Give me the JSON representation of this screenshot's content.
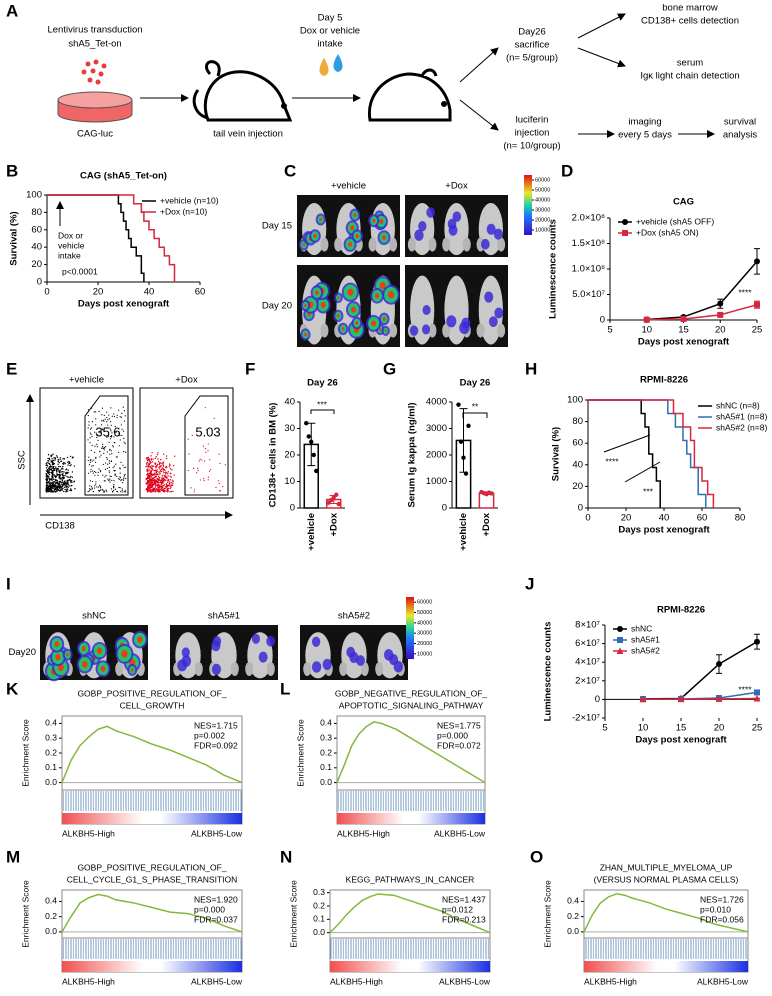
{
  "diagram": {
    "label": "A",
    "texts": [
      "Lentivirus transduction",
      "shA5_Tet-on",
      "CAG-luc",
      "tail vein injection",
      "Day 5",
      "Dox or vehicle",
      "intake",
      "Day26",
      "sacrifice",
      "(n= 5/group)",
      "bone marrow",
      "CD138+ cells detection",
      "serum",
      "Igκ light chain detection",
      "luciferin",
      "injection",
      "(n= 10/group)",
      "imaging",
      "every 5 days",
      "survival",
      "analysis"
    ]
  },
  "imaging": [
    {
      "label": "C",
      "columns": [
        "+vehicle",
        "+Dox"
      ],
      "rows": [
        "Day 15",
        "Day 20"
      ],
      "colorbar_lim": [
        5000,
        65000
      ],
      "colorbar_ticks": [
        60000,
        50000,
        40000,
        30000,
        20000,
        10000
      ]
    },
    {
      "label": "I",
      "columns": [
        "shNC",
        "shA5#1",
        "shA5#2"
      ],
      "rows": [
        "Day20"
      ],
      "colorbar_lim": [
        5000,
        65000
      ],
      "colorbar_ticks": [
        60000,
        50000,
        40000,
        30000,
        20000,
        10000
      ]
    }
  ],
  "flow": {
    "label": "E",
    "x_label": "CD138",
    "y_label": "SSC",
    "plots": [
      {
        "title": "+vehicle",
        "gate": 35.6,
        "color": "#000000"
      },
      {
        "title": "+Dox",
        "gate": 5.03,
        "color": "#e0001b"
      }
    ]
  },
  "chart_data": [
    {
      "label": "B",
      "type": "survival",
      "title": "CAG (shA5_Tet-on)",
      "y_label": "Survival (%)",
      "x_label": "Days post xenograft",
      "xlim": [
        0,
        60
      ],
      "xticks": [
        0,
        20,
        40,
        60
      ],
      "ylim": [
        0,
        100
      ],
      "yticks": [
        0,
        20,
        40,
        60,
        80,
        100
      ],
      "legend": "upper right",
      "series": [
        {
          "name": "+vehicle (n=10)",
          "color": "#000000",
          "x": [
            0,
            28,
            29,
            30,
            31,
            32,
            33,
            35,
            37,
            38
          ],
          "values": [
            100,
            90,
            80,
            70,
            60,
            50,
            40,
            30,
            10,
            0
          ]
        },
        {
          "name": "+Dox (n=10)",
          "color": "#d7263d",
          "x": [
            0,
            34,
            37,
            38,
            40,
            42,
            44,
            46,
            48,
            50
          ],
          "values": [
            100,
            90,
            80,
            70,
            60,
            50,
            40,
            30,
            20,
            0
          ]
        }
      ],
      "annotations": [
        "Dox or",
        "vehicle",
        "intake",
        "p<0.0001"
      ]
    },
    {
      "label": "D",
      "type": "line",
      "title": "CAG",
      "y_label": "Luminescence counts",
      "x_label": "Days post xenograft",
      "xlim": [
        5,
        25
      ],
      "xticks": [
        5,
        10,
        15,
        20,
        25
      ],
      "ylim": [
        0,
        200000000
      ],
      "yticks": [
        0,
        {
          "value": 50000000,
          "label": "5.0×10⁷"
        },
        {
          "value": 100000000,
          "label": "1.0×10⁸"
        },
        {
          "value": 150000000,
          "label": "1.5×10⁸"
        },
        {
          "value": 200000000,
          "label": "2.0×10⁸"
        }
      ],
      "legend": "upper left",
      "x": [
        10,
        15,
        20,
        25
      ],
      "series": [
        {
          "name": "+vehicle (shA5 OFF)",
          "color": "#000000",
          "marker": "circle",
          "values": [
            1000000,
            6000000,
            32000000,
            115000000
          ],
          "errors": [
            500000,
            2000000,
            9000000,
            25000000
          ]
        },
        {
          "name": "+Dox (shA5 ON)",
          "color": "#d7263d",
          "marker": "square",
          "values": [
            500000,
            2000000,
            10000000,
            30000000
          ],
          "errors": [
            300000,
            1000000,
            3000000,
            7000000
          ]
        }
      ],
      "annotations": [
        "****"
      ]
    },
    {
      "label": "F",
      "type": "bar",
      "title": "Day 26",
      "y_label": "CD138+ cells in BM (%)",
      "ylim": [
        0,
        40
      ],
      "yticks": [
        0,
        10,
        20,
        30,
        40
      ],
      "categories": [
        "+vehicle",
        "+Dox"
      ],
      "colors": [
        "#000000",
        "#d7263d"
      ],
      "values": [
        24,
        3.2
      ],
      "errors": [
        8,
        1.5
      ],
      "points": [
        [
          32,
          27,
          25,
          20,
          14
        ],
        [
          2,
          3,
          4,
          5,
          1.5
        ]
      ],
      "annotations": [
        "***"
      ]
    },
    {
      "label": "G",
      "type": "bar",
      "title": "Day 26",
      "y_label": "Serum Ig kappa (ng/ml)",
      "ylim": [
        0,
        4000
      ],
      "yticks": [
        0,
        1000,
        2000,
        3000,
        4000
      ],
      "categories": [
        "+vehicle",
        "+Dox"
      ],
      "colors": [
        "#000000",
        "#d7263d"
      ],
      "values": [
        2550,
        560
      ],
      "errors": [
        1200,
        50
      ],
      "points": [
        [
          3900,
          2500,
          1900,
          1300,
          3100
        ],
        [
          600,
          560,
          520,
          580,
          550
        ]
      ],
      "annotations": [
        "**"
      ]
    },
    {
      "label": "H",
      "type": "survival",
      "title": "RPMI-8226",
      "y_label": "Survival (%)",
      "x_label": "Days post xenograft",
      "xlim": [
        0,
        80
      ],
      "xticks": [
        0,
        20,
        40,
        60,
        80
      ],
      "ylim": [
        0,
        100
      ],
      "yticks": [
        0,
        20,
        40,
        60,
        80,
        100
      ],
      "legend": "upper right",
      "series": [
        {
          "name": "shNC (n=8)",
          "color": "#000000",
          "x": [
            0,
            28,
            30,
            32,
            34,
            36,
            38
          ],
          "values": [
            100,
            87.5,
            75,
            50,
            37.5,
            25,
            0
          ]
        },
        {
          "name": "shA5#1 (n=8)",
          "color": "#2f6eb5",
          "x": [
            0,
            42,
            46,
            50,
            52,
            54,
            58,
            62
          ],
          "values": [
            100,
            87.5,
            75,
            62.5,
            50,
            37.5,
            12.5,
            0
          ]
        },
        {
          "name": "shA5#2 (n=8)",
          "color": "#d7263d",
          "x": [
            0,
            45,
            50,
            54,
            56,
            60,
            63,
            66
          ],
          "values": [
            100,
            87.5,
            75,
            62.5,
            37.5,
            25,
            12.5,
            0
          ]
        }
      ],
      "annotations": [
        "****",
        "***"
      ]
    },
    {
      "label": "J",
      "type": "line",
      "title": "RPMI-8226",
      "y_label": "Luminescence counts",
      "x_label": "Days post xenograft",
      "xlim": [
        5,
        25
      ],
      "xticks": [
        5,
        10,
        15,
        20,
        25
      ],
      "ylim": [
        -20000000,
        80000000
      ],
      "yticks": [
        {
          "value": -20000000,
          "label": "-2×10⁷"
        },
        0,
        {
          "value": 20000000,
          "label": "2×10⁷"
        },
        {
          "value": 40000000,
          "label": "4×10⁷"
        },
        {
          "value": 60000000,
          "label": "6×10⁷"
        },
        {
          "value": 80000000,
          "label": "8×10⁷"
        }
      ],
      "legend": "upper left",
      "x": [
        10,
        15,
        20,
        25
      ],
      "series": [
        {
          "name": "shNC",
          "color": "#000000",
          "marker": "circle",
          "values": [
            500000,
            1000000,
            38000000,
            62000000
          ],
          "errors": [
            300000,
            500000,
            10000000,
            8000000
          ]
        },
        {
          "name": "shA5#1",
          "color": "#2f6eb5",
          "marker": "square",
          "values": [
            300000,
            400000,
            1500000,
            7500000
          ],
          "errors": [
            100000,
            100000,
            500000,
            1500000
          ]
        },
        {
          "name": "shA5#2",
          "color": "#d7263d",
          "marker": "triangle",
          "values": [
            200000,
            300000,
            600000,
            1000000
          ],
          "errors": [
            100000,
            100000,
            200000,
            300000
          ]
        }
      ],
      "annotations": [
        "****"
      ]
    },
    {
      "label": "K",
      "type": "gsea",
      "title": [
        "GOBP_POSITIVE_REGULATION_OF_",
        "CELL_GROWTH"
      ],
      "stats": [
        "NES=1.715",
        "p=0.002",
        "FDR=0.092"
      ],
      "y_label": "Enrichment Score",
      "high_label": "ALKBH5-High",
      "low_label": "ALKBH5-Low",
      "color": "#86b83c",
      "xlim": [
        0,
        100
      ],
      "ylim": [
        -0.05,
        0.45
      ],
      "yticks": [
        {
          "value": 0,
          "label": "0.0"
        },
        0.1,
        0.2,
        0.3,
        0.4
      ],
      "x": [
        0,
        5,
        10,
        15,
        20,
        25,
        30,
        40,
        50,
        60,
        70,
        80,
        90,
        100
      ],
      "values": [
        0,
        0.15,
        0.25,
        0.31,
        0.36,
        0.38,
        0.35,
        0.31,
        0.26,
        0.22,
        0.17,
        0.12,
        0.05,
        0
      ]
    },
    {
      "label": "L",
      "type": "gsea",
      "title": [
        "GOBP_NEGATIVE_REGULATION_OF_",
        "APOPTOTIC_SIGNALING_PATHWAY"
      ],
      "stats": [
        "NES=1.775",
        "p=0.000",
        "FDR=0.072"
      ],
      "y_label": "Enrichment Score",
      "high_label": "ALKBH5-High",
      "low_label": "ALKBH5-Low",
      "color": "#86b83c",
      "xlim": [
        0,
        100
      ],
      "ylim": [
        -0.05,
        0.45
      ],
      "yticks": [
        {
          "value": 0,
          "label": "0.0"
        },
        0.1,
        0.2,
        0.3,
        0.4
      ],
      "x": [
        0,
        5,
        10,
        15,
        20,
        25,
        30,
        40,
        50,
        60,
        70,
        80,
        90,
        100
      ],
      "values": [
        0,
        0.12,
        0.25,
        0.33,
        0.38,
        0.41,
        0.4,
        0.36,
        0.3,
        0.24,
        0.18,
        0.12,
        0.06,
        0
      ]
    },
    {
      "label": "M",
      "type": "gsea",
      "title": [
        "GOBP_POSITIVE_REGULATION_OF_",
        "CELL_CYCLE_G1_S_PHASE_TRANSITION"
      ],
      "stats": [
        "NES=1.920",
        "p=0.000",
        "FDR=0.037"
      ],
      "y_label": "Enrichment Score",
      "high_label": "ALKBH5-High",
      "low_label": "ALKBH5-Low",
      "color": "#86b83c",
      "xlim": [
        0,
        100
      ],
      "ylim": [
        -0.08,
        0.55
      ],
      "yticks": [
        {
          "value": 0,
          "label": "0.0"
        },
        0.2,
        0.4
      ],
      "x": [
        0,
        5,
        10,
        15,
        20,
        25,
        30,
        40,
        50,
        60,
        70,
        80,
        90,
        100
      ],
      "values": [
        0,
        0.2,
        0.38,
        0.45,
        0.49,
        0.47,
        0.42,
        0.38,
        0.32,
        0.26,
        0.24,
        0.18,
        0.08,
        0
      ]
    },
    {
      "label": "N",
      "type": "gsea",
      "title": [
        "KEGG_PATHWAYS_IN_CANCER"
      ],
      "stats": [
        "NES=1.437",
        "p=0.012",
        "FDR=0.213"
      ],
      "y_label": "Enrichment Score",
      "high_label": "ALKBH5-High",
      "low_label": "ALKBH5-Low",
      "color": "#86b83c",
      "xlim": [
        0,
        100
      ],
      "ylim": [
        -0.04,
        0.32
      ],
      "yticks": [
        {
          "value": 0,
          "label": "0.0"
        },
        0.1,
        0.2,
        0.3
      ],
      "x": [
        0,
        5,
        10,
        15,
        20,
        25,
        30,
        40,
        50,
        60,
        70,
        80,
        90,
        100
      ],
      "values": [
        0,
        0.06,
        0.13,
        0.19,
        0.24,
        0.27,
        0.29,
        0.28,
        0.24,
        0.2,
        0.16,
        0.1,
        0.05,
        0
      ]
    },
    {
      "label": "O",
      "type": "gsea",
      "title": [
        "ZHAN_MULTIPLE_MYELOMA_UP",
        "(VERSUS NORMAL PLASMA CELLS)"
      ],
      "stats": [
        "NES=1.726",
        "p=0.010",
        "FDR=0.056"
      ],
      "y_label": "Enrichment Score",
      "high_label": "ALKBH5-High",
      "low_label": "ALKBH5-Low",
      "color": "#86b83c",
      "xlim": [
        0,
        100
      ],
      "ylim": [
        -0.08,
        0.55
      ],
      "yticks": [
        {
          "value": 0,
          "label": "0.0"
        },
        0.2,
        0.4
      ],
      "x": [
        0,
        5,
        10,
        15,
        20,
        25,
        30,
        40,
        50,
        60,
        70,
        80,
        90,
        100
      ],
      "values": [
        0,
        0.22,
        0.38,
        0.46,
        0.5,
        0.48,
        0.44,
        0.38,
        0.3,
        0.24,
        0.18,
        0.1,
        0.05,
        0
      ]
    }
  ]
}
